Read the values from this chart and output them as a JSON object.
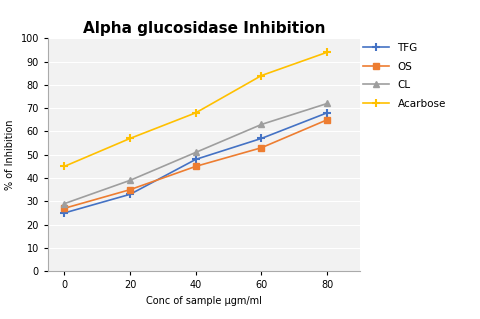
{
  "title": "Alpha glucosidase Inhibition",
  "xlabel": "Conc of sample μgm/ml",
  "ylabel": "% of Inhibition",
  "x": [
    0,
    20,
    40,
    60,
    80
  ],
  "TFG": [
    25,
    33,
    48,
    57,
    68
  ],
  "OS": [
    27,
    35,
    45,
    53,
    65
  ],
  "CL": [
    29,
    39,
    51,
    63,
    72
  ],
  "Acarbose": [
    45,
    57,
    68,
    84,
    94
  ],
  "ylim": [
    0,
    100
  ],
  "xlim": [
    -5,
    90
  ],
  "yticks": [
    0,
    10,
    20,
    30,
    40,
    50,
    60,
    70,
    80,
    90,
    100
  ],
  "xticks": [
    0,
    20,
    40,
    60,
    80
  ],
  "TFG_color": "#4472C4",
  "OS_color": "#ED7D31",
  "CL_color": "#9E9E9E",
  "Acarbose_color": "#FFC000",
  "legend_labels": [
    "TFG",
    "OS",
    "CL",
    "Acarbose"
  ],
  "bg_color": "#FFFFFF",
  "plot_bg_color": "#F2F2F2",
  "grid_color": "#FFFFFF",
  "title_fontsize": 11,
  "label_fontsize": 7,
  "tick_fontsize": 7,
  "legend_fontsize": 7.5
}
